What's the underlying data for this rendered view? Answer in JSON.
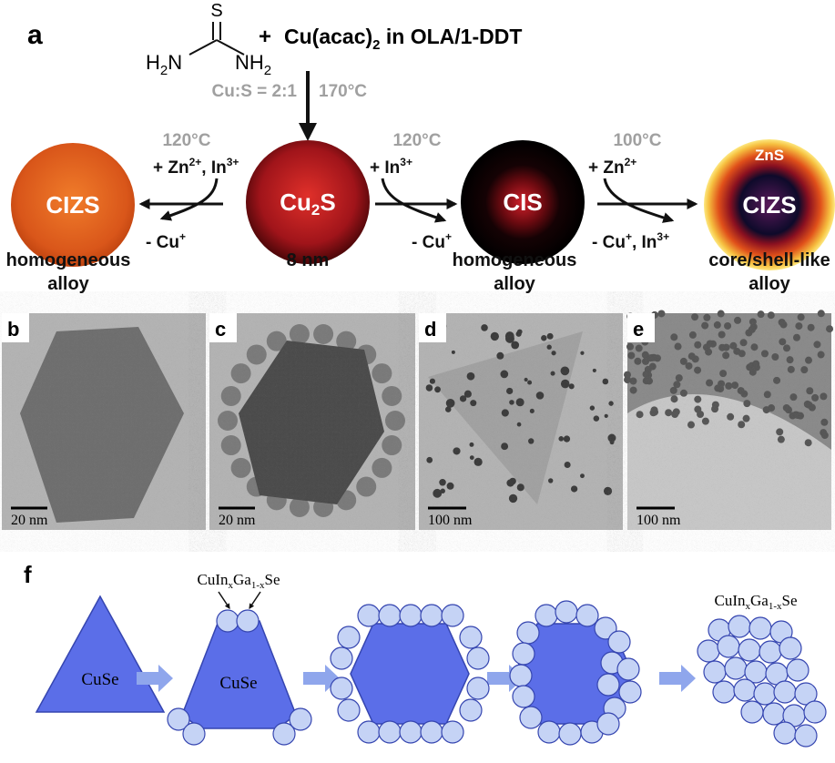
{
  "panel_a": {
    "label": "a",
    "thiourea": {
      "s": "S",
      "left": [
        "H",
        "2",
        "N"
      ],
      "right": [
        "NH",
        "2"
      ]
    },
    "plus": "+",
    "precursor": [
      "Cu(acac)",
      "2",
      " in OLA/1-DDT"
    ],
    "conditions": {
      "ratio": "Cu:S = 2:1",
      "temperature": "170°C"
    },
    "center": {
      "core": [
        "Cu",
        "2",
        "S"
      ],
      "size": "8 nm"
    },
    "left_step": {
      "temperature": "120°C",
      "add": [
        "+ Zn",
        "2+",
        ", In",
        "3+"
      ],
      "remove": [
        "- Cu",
        "+"
      ],
      "product": "CIZS",
      "description": [
        "homogeneous",
        "alloy"
      ]
    },
    "middle_step": {
      "temperature": "120°C",
      "add": [
        "+ In",
        "3+"
      ],
      "remove": [
        "- Cu",
        "+"
      ],
      "product": "CIS",
      "description": [
        "homogeneous",
        "alloy"
      ]
    },
    "right_step": {
      "temperature": "100°C",
      "add": [
        "+ Zn",
        "2+"
      ],
      "remove": [
        "- Cu",
        "+",
        ", In",
        "3+"
      ],
      "shell": "ZnS",
      "product": "CIZS",
      "description": [
        "core/shell-like",
        "alloy"
      ]
    }
  },
  "tem_panels": [
    {
      "label": "b",
      "scale_bar": "20 nm"
    },
    {
      "label": "c",
      "scale_bar": "20 nm"
    },
    {
      "label": "d",
      "scale_bar": "100 nm"
    },
    {
      "label": "e",
      "scale_bar": "100 nm"
    }
  ],
  "panel_f": {
    "label": "f",
    "stage_1": "CuSe",
    "stage_2": "CuSe",
    "annotation_1": [
      "CuIn",
      "x",
      "Ga",
      "1-x",
      "Se"
    ],
    "annotation_2": [
      "CuIn",
      "x",
      "Ga",
      "1-x",
      "Se"
    ]
  }
}
